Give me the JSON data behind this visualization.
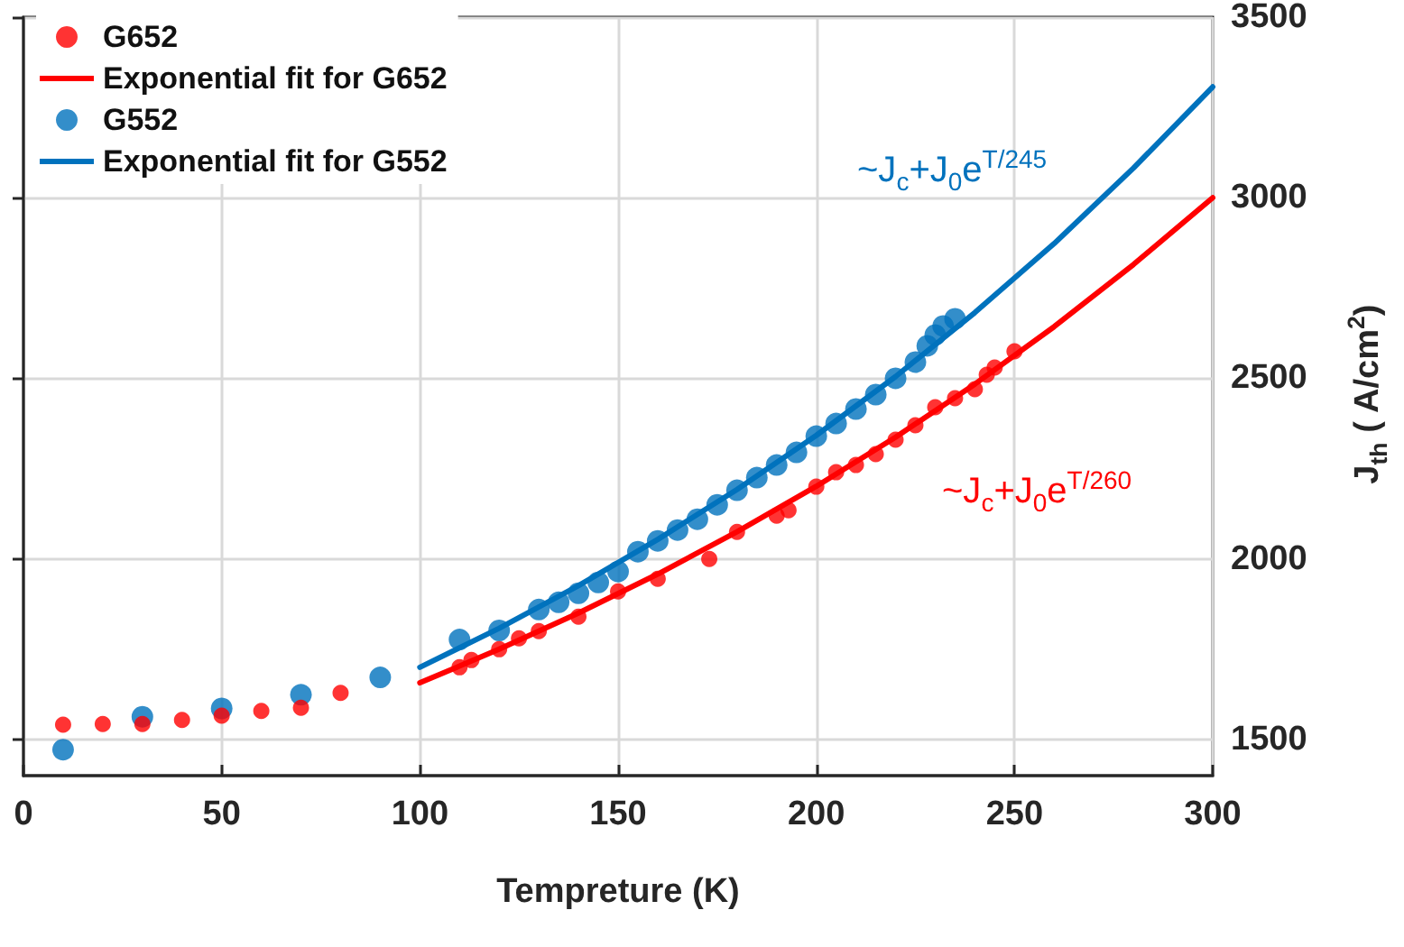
{
  "chart_data": {
    "type": "scatter",
    "xlabel": "Tempreture (K)",
    "ylabel": "J$_{th}$ ( A/cm$^{2}$)",
    "xlim": [
      0,
      300
    ],
    "xticks": [
      0,
      50,
      100,
      150,
      200,
      250,
      300
    ],
    "ylim": [
      1400,
      3500
    ],
    "yticks": [
      1500,
      2000,
      2500,
      3000,
      3500
    ],
    "grid": true,
    "legend": "top left",
    "marker": "circle",
    "series": [
      {
        "name": "G652",
        "color": "#ff0000",
        "x": [
          10,
          20,
          30,
          40,
          50,
          60,
          70,
          80,
          110,
          113,
          120,
          125,
          130,
          140,
          150,
          160,
          173,
          180,
          190,
          193,
          200,
          205,
          210,
          215,
          220,
          225,
          230,
          235,
          240,
          243,
          245,
          250
        ],
        "values": [
          1541,
          1543,
          1543,
          1554,
          1566,
          1579,
          1588,
          1629,
          1700,
          1720,
          1750,
          1780,
          1800,
          1840,
          1910,
          1945,
          2000,
          2075,
          2120,
          2135,
          2200,
          2240,
          2260,
          2290,
          2330,
          2370,
          2420,
          2445,
          2470,
          2510,
          2530,
          2575
        ]
      },
      {
        "name": "Exponential fit for G652",
        "type": "line",
        "marker": "none",
        "color": "#ff0000",
        "x": [
          100,
          120,
          140,
          160,
          180,
          200,
          220,
          240,
          260,
          280,
          300
        ],
        "values": [
          1657,
          1750,
          1850,
          1958,
          2075,
          2201,
          2337,
          2484,
          2643,
          2815,
          3000
        ]
      },
      {
        "name": "G552",
        "color": "#0072bd",
        "x": [
          10,
          30,
          50,
          70,
          90,
          110,
          120,
          130,
          135,
          140,
          145,
          150,
          155,
          160,
          165,
          170,
          175,
          180,
          185,
          190,
          195,
          200,
          205,
          210,
          215,
          220,
          225,
          228,
          230,
          232,
          235
        ],
        "values": [
          1472,
          1563,
          1586,
          1624,
          1672,
          1777,
          1802,
          1860,
          1880,
          1905,
          1935,
          1965,
          2020,
          2050,
          2080,
          2110,
          2150,
          2190,
          2225,
          2260,
          2295,
          2340,
          2375,
          2415,
          2455,
          2500,
          2545,
          2590,
          2620,
          2645,
          2665
        ]
      },
      {
        "name": "Exponential fit for G552",
        "type": "line",
        "marker": "none",
        "color": "#0072bd",
        "x": [
          100,
          120,
          140,
          160,
          180,
          200,
          220,
          240,
          260,
          280,
          300
        ],
        "values": [
          1700,
          1808,
          1926,
          2054,
          2192,
          2342,
          2505,
          2682,
          2873,
          3082,
          3307
        ]
      }
    ],
    "annotations": [
      "~J$_{c}$+J$_{0}$e$^{T/260}$",
      "~J$_{c}$+J$_{0}$e$^{T/245}$"
    ]
  }
}
